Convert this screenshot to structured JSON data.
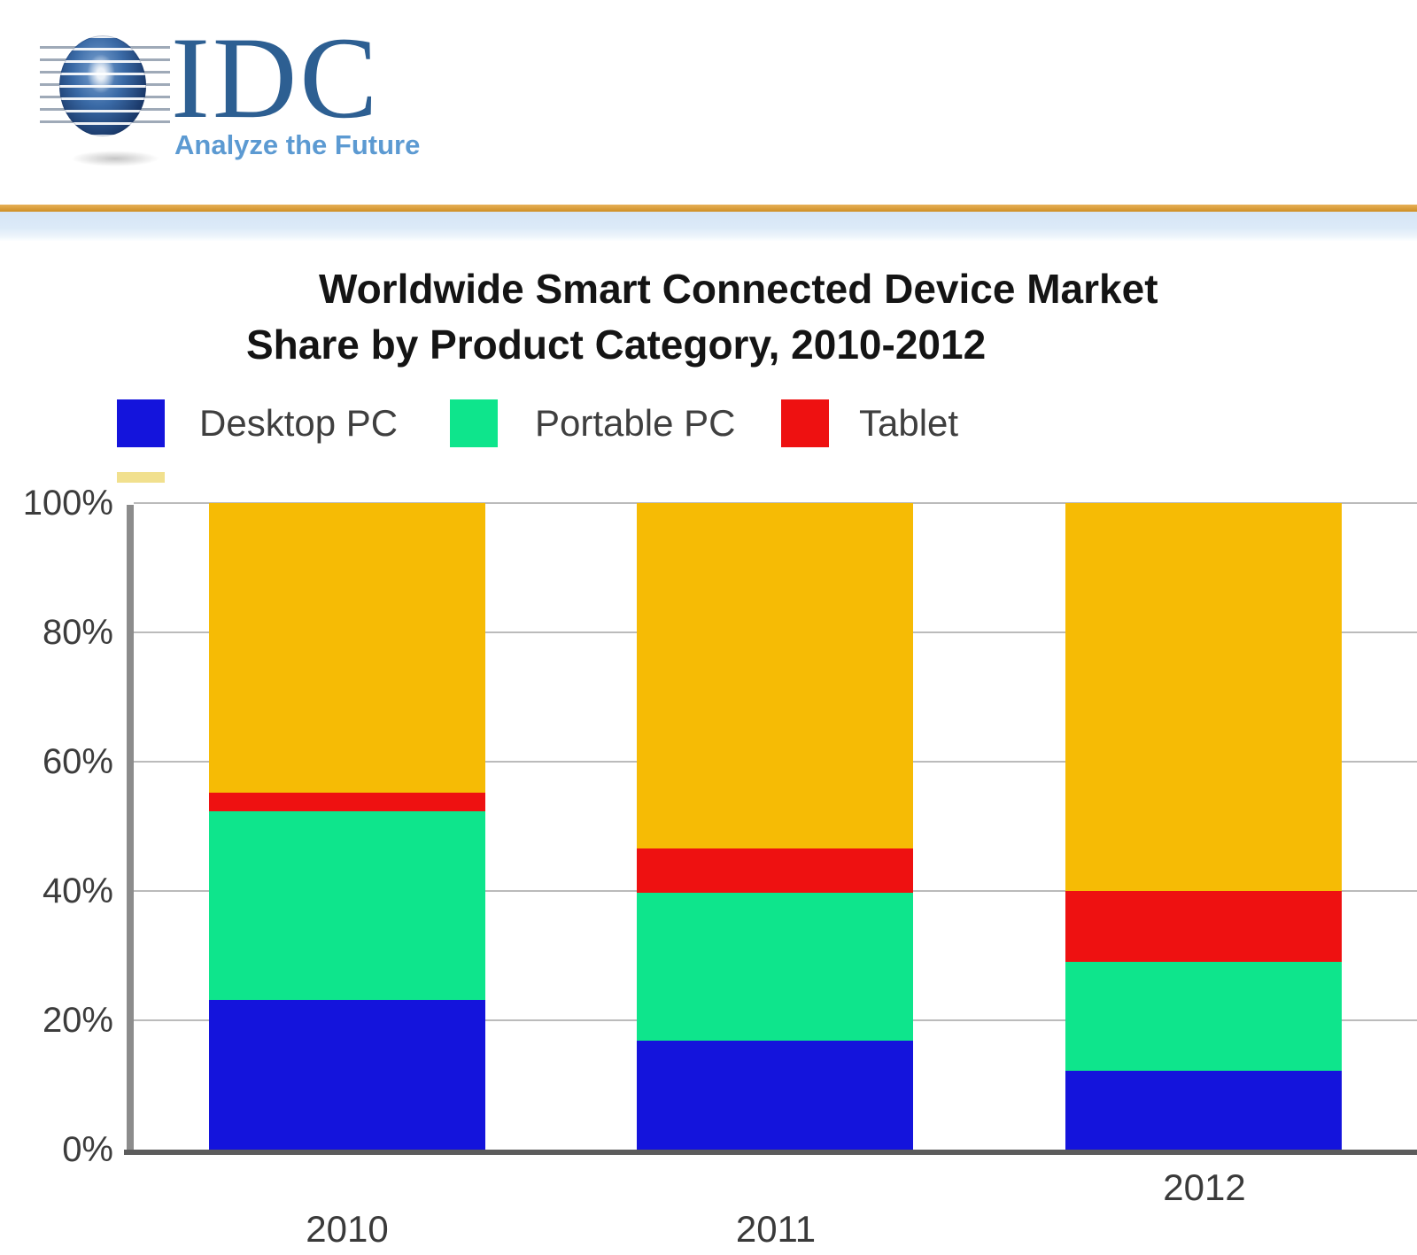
{
  "header": {
    "logo_text": "IDC",
    "logo_tagline": "Analyze the Future",
    "colors": {
      "logo_text": "#2D5F92",
      "tagline": "#5C9AD2",
      "gold_rule": "#D69A33",
      "blue_band": "#D9E7F6"
    }
  },
  "chart_data": {
    "type": "bar",
    "stacked": true,
    "title_line1": "Worldwide Smart Connected Device Market",
    "title_line2": "Share by Product Category, 2010-2012",
    "categories": [
      "2010",
      "2011",
      "2012"
    ],
    "series": [
      {
        "name": "Desktop PC",
        "color": "#1414DC",
        "values": [
          23.2,
          16.8,
          12.2
        ],
        "in_legend": true
      },
      {
        "name": "Portable PC",
        "color": "#0EE58C",
        "values": [
          29.1,
          22.9,
          16.8
        ],
        "in_legend": true
      },
      {
        "name": "Tablet",
        "color": "#EE1111",
        "values": [
          2.9,
          6.9,
          11.0
        ],
        "in_legend": true
      },
      {
        "name": "",
        "color": "#F6BB05",
        "values": [
          44.8,
          53.4,
          60.0
        ],
        "in_legend": false
      }
    ],
    "ylabel_ticks": [
      "100%",
      "80%",
      "60%",
      "40%",
      "20%",
      "0%"
    ],
    "ytick_percents": [
      100,
      80,
      60,
      40,
      20,
      0
    ],
    "ylim": [
      0,
      100
    ],
    "grid": "horizontal",
    "legend_position": "top",
    "gridline_color": "#BBBBBB",
    "axis_color": "#5C5C5C"
  },
  "legend": {
    "clipped_swatch_color": "#F1E08E"
  }
}
